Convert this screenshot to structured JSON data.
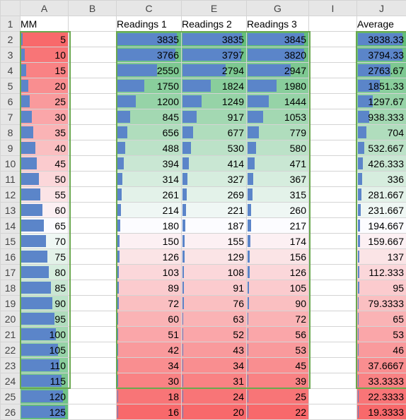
{
  "columns": [
    "A",
    "B",
    "C",
    "E",
    "G",
    "I",
    "J"
  ],
  "header_row": {
    "A": "MM",
    "B": "",
    "C": "Readings 1",
    "E": "Readings 2",
    "G": "Readings 3",
    "I": "",
    "J": "Average"
  },
  "rows": [
    {
      "n": "2",
      "A": 5,
      "C": 3835,
      "E": 3835,
      "G": 3845,
      "J": "3838.33"
    },
    {
      "n": "3",
      "A": 10,
      "C": 3766,
      "E": 3797,
      "G": 3820,
      "J": "3794.33"
    },
    {
      "n": "4",
      "A": 15,
      "C": 2550,
      "E": 2794,
      "G": 2947,
      "J": "2763.67"
    },
    {
      "n": "5",
      "A": 20,
      "C": 1750,
      "E": 1824,
      "G": 1980,
      "J": "1851.33"
    },
    {
      "n": "6",
      "A": 25,
      "C": 1200,
      "E": 1249,
      "G": 1444,
      "J": "1297.67"
    },
    {
      "n": "7",
      "A": 30,
      "C": 845,
      "E": 917,
      "G": 1053,
      "J": "938.333"
    },
    {
      "n": "8",
      "A": 35,
      "C": 656,
      "E": 677,
      "G": 779,
      "J": "704"
    },
    {
      "n": "9",
      "A": 40,
      "C": 488,
      "E": 530,
      "G": 580,
      "J": "532.667"
    },
    {
      "n": "10",
      "A": 45,
      "C": 394,
      "E": 414,
      "G": 471,
      "J": "426.333"
    },
    {
      "n": "11",
      "A": 50,
      "C": 314,
      "E": 327,
      "G": 367,
      "J": "336"
    },
    {
      "n": "12",
      "A": 55,
      "C": 261,
      "E": 269,
      "G": 315,
      "J": "281.667"
    },
    {
      "n": "13",
      "A": 60,
      "C": 214,
      "E": 221,
      "G": 260,
      "J": "231.667"
    },
    {
      "n": "14",
      "A": 65,
      "C": 180,
      "E": 187,
      "G": 217,
      "J": "194.667"
    },
    {
      "n": "15",
      "A": 70,
      "C": 150,
      "E": 155,
      "G": 174,
      "J": "159.667"
    },
    {
      "n": "16",
      "A": 75,
      "C": 126,
      "E": 129,
      "G": 156,
      "J": "137"
    },
    {
      "n": "17",
      "A": 80,
      "C": 103,
      "E": 108,
      "G": 126,
      "J": "112.333"
    },
    {
      "n": "18",
      "A": 85,
      "C": 89,
      "E": 91,
      "G": 105,
      "J": "95"
    },
    {
      "n": "19",
      "A": 90,
      "C": 72,
      "E": 76,
      "G": 90,
      "J": "79.3333"
    },
    {
      "n": "20",
      "A": 95,
      "C": 60,
      "E": 63,
      "G": 72,
      "J": "65"
    },
    {
      "n": "21",
      "A": 100,
      "C": 51,
      "E": 52,
      "G": 56,
      "J": "53"
    },
    {
      "n": "22",
      "A": 105,
      "C": 42,
      "E": 43,
      "G": 53,
      "J": "46"
    },
    {
      "n": "23",
      "A": 110,
      "C": 34,
      "E": 34,
      "G": 45,
      "J": "37.6667"
    },
    {
      "n": "24",
      "A": 115,
      "C": 30,
      "E": 31,
      "G": 39,
      "J": "33.3333"
    },
    {
      "n": "25",
      "A": 120,
      "C": 18,
      "E": 24,
      "G": 25,
      "J": "22.3333"
    },
    {
      "n": "26",
      "A": 125,
      "C": 16,
      "E": 20,
      "G": 22,
      "J": "19.3333"
    }
  ],
  "first_row_number": "1",
  "colors": {
    "bar": "#5b85c9",
    "scale_high": "#f8696b",
    "scale_mid": "#fcfcff",
    "scale_low_green": "#63be7b",
    "selection_border": "#6aa84f",
    "header_bg": "#e6e6e6"
  }
}
